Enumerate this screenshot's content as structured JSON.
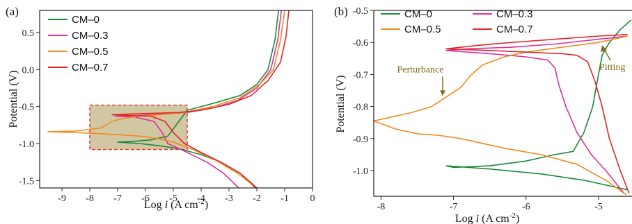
{
  "chart_data": [
    {
      "type": "line",
      "panel_label": "(a)",
      "xlabel": "Log i (A cm⁻²)",
      "ylabel": "Potential (V)",
      "xlim": [
        -9.8,
        0
      ],
      "ylim": [
        -1.6,
        0.8
      ],
      "xticks": [
        -9,
        -8,
        -7,
        -6,
        -5,
        -4,
        -3,
        -2,
        -1,
        0
      ],
      "yticks": [
        -1.5,
        -1.0,
        -0.5,
        0.0,
        0.5
      ],
      "ytick_labels": [
        "-1.5",
        "-1.0",
        "-0.5",
        "0.0",
        "0.5"
      ],
      "legend_position": "top-left",
      "highlight_box": {
        "x": [
          -8.0,
          -4.5
        ],
        "y": [
          -1.08,
          -0.48
        ]
      },
      "series": [
        {
          "name": "CM–0",
          "color": "#1a8a3a",
          "x": [
            -2.05,
            -2.6,
            -3.3,
            -4.0,
            -4.8,
            -5.5,
            -6.2,
            -7.0,
            -6.4,
            -5.8,
            -5.2,
            -4.8,
            -4.5,
            -3.5,
            -2.6,
            -2.0,
            -1.6,
            -1.35,
            -1.22
          ],
          "y": [
            -1.6,
            -1.4,
            -1.25,
            -1.15,
            -1.07,
            -1.03,
            -1.0,
            -0.98,
            -0.97,
            -0.95,
            -0.9,
            -0.7,
            -0.55,
            -0.45,
            -0.35,
            -0.2,
            0.0,
            0.4,
            0.8
          ]
        },
        {
          "name": "CM–0.3",
          "color": "#e0309a",
          "x": [
            -2.65,
            -3.2,
            -3.8,
            -4.5,
            -5.2,
            -5.4,
            -5.7,
            -6.4,
            -7.1,
            -6.2,
            -5.3,
            -4.5,
            -3.6,
            -2.7,
            -2.0,
            -1.5,
            -1.25,
            -1.12
          ],
          "y": [
            -1.6,
            -1.4,
            -1.25,
            -1.12,
            -1.0,
            -0.85,
            -0.7,
            -0.64,
            -0.63,
            -0.62,
            -0.6,
            -0.58,
            -0.52,
            -0.42,
            -0.25,
            0.0,
            0.4,
            0.8
          ]
        },
        {
          "name": "CM–0.5",
          "color": "#f28a1e",
          "x": [
            -2.0,
            -2.7,
            -3.5,
            -4.3,
            -5.0,
            -5.6,
            -6.2,
            -7.0,
            -8.0,
            -9.0,
            -9.5,
            -8.5,
            -7.6,
            -7.2,
            -6.8,
            -6.2,
            -5.5,
            -4.6,
            -3.6,
            -2.6,
            -1.9,
            -1.4,
            -1.15,
            -1.0
          ],
          "y": [
            -1.6,
            -1.4,
            -1.22,
            -1.08,
            -0.98,
            -0.93,
            -0.9,
            -0.88,
            -0.86,
            -0.845,
            -0.84,
            -0.83,
            -0.79,
            -0.7,
            -0.66,
            -0.63,
            -0.61,
            -0.58,
            -0.5,
            -0.38,
            -0.2,
            0.0,
            0.4,
            0.8
          ]
        },
        {
          "name": "CM–0.7",
          "color": "#e0262a",
          "x": [
            -2.0,
            -2.6,
            -3.3,
            -4.0,
            -4.6,
            -5.0,
            -5.3,
            -5.8,
            -6.5,
            -7.2,
            -6.5,
            -5.6,
            -4.8,
            -4.0,
            -3.0,
            -2.2,
            -1.6,
            -1.15,
            -0.95,
            -0.85
          ],
          "y": [
            -1.6,
            -1.4,
            -1.25,
            -1.12,
            -1.0,
            -0.85,
            -0.7,
            -0.63,
            -0.62,
            -0.61,
            -0.6,
            -0.59,
            -0.58,
            -0.55,
            -0.47,
            -0.35,
            -0.15,
            0.1,
            0.45,
            0.8
          ]
        }
      ]
    },
    {
      "type": "line",
      "panel_label": "(b)",
      "xlabel": "Log i (A cm⁻²)",
      "ylabel": "Potential (V)",
      "xlim": [
        -8.1,
        -4.5
      ],
      "ylim": [
        -1.08,
        -0.5
      ],
      "xticks": [
        -8,
        -7,
        -6,
        -5
      ],
      "yticks": [
        -1.0,
        -0.9,
        -0.8,
        -0.7,
        -0.6,
        -0.5
      ],
      "ytick_labels": [
        "-1.0",
        "-0.9",
        "-0.8",
        "-0.7",
        "-0.6",
        "-0.5"
      ],
      "legend_position": "top",
      "annotations": [
        {
          "text": "Perturbance",
          "x": -7.15,
          "y": -0.78,
          "color": "#8a6d1c"
        },
        {
          "text": "Pitting",
          "x": -4.97,
          "y": -0.6,
          "color": "#8a6d1c"
        }
      ],
      "series": [
        {
          "name": "CM–0",
          "color": "#1a8a3a",
          "x": [
            -4.6,
            -5.2,
            -5.8,
            -6.5,
            -7.1,
            -7.0,
            -6.5,
            -6.0,
            -5.6,
            -5.35,
            -5.2,
            -5.08,
            -5.0,
            -4.95,
            -4.85,
            -4.7,
            -4.55
          ],
          "y": [
            -1.06,
            -1.03,
            -1.01,
            -0.995,
            -0.985,
            -0.99,
            -0.985,
            -0.97,
            -0.95,
            -0.94,
            -0.88,
            -0.8,
            -0.7,
            -0.64,
            -0.6,
            -0.56,
            -0.53
          ]
        },
        {
          "name": "CM–0.3",
          "color": "#e0309a",
          "x": [
            -4.65,
            -4.9,
            -5.1,
            -5.3,
            -5.45,
            -5.55,
            -5.6,
            -5.7,
            -6.0,
            -6.5,
            -7.1,
            -6.8,
            -6.2,
            -5.6,
            -5.0,
            -4.6
          ],
          "y": [
            -1.07,
            -1.0,
            -0.95,
            -0.88,
            -0.8,
            -0.73,
            -0.68,
            -0.655,
            -0.645,
            -0.635,
            -0.625,
            -0.62,
            -0.615,
            -0.605,
            -0.59,
            -0.58
          ]
        },
        {
          "name": "CM–0.5",
          "color": "#f28a1e",
          "x": [
            -4.62,
            -4.9,
            -5.3,
            -5.8,
            -6.3,
            -6.9,
            -7.2,
            -7.5,
            -7.8,
            -8.1,
            -7.9,
            -7.6,
            -7.3,
            -7.1,
            -6.9,
            -6.75,
            -6.6,
            -6.3,
            -6.0,
            -5.5,
            -5.0,
            -4.6
          ],
          "y": [
            -1.075,
            -1.03,
            -0.98,
            -0.95,
            -0.93,
            -0.9,
            -0.89,
            -0.885,
            -0.87,
            -0.845,
            -0.835,
            -0.82,
            -0.8,
            -0.77,
            -0.74,
            -0.7,
            -0.67,
            -0.645,
            -0.63,
            -0.615,
            -0.6,
            -0.58
          ]
        },
        {
          "name": "CM–0.7",
          "color": "#e0262a",
          "x": [
            -4.58,
            -4.7,
            -4.85,
            -4.95,
            -5.05,
            -5.15,
            -5.3,
            -5.5,
            -6.0,
            -6.5,
            -7.1,
            -6.7,
            -6.2,
            -5.6,
            -5.0,
            -4.6
          ],
          "y": [
            -1.07,
            -1.0,
            -0.9,
            -0.8,
            -0.72,
            -0.66,
            -0.64,
            -0.635,
            -0.63,
            -0.625,
            -0.62,
            -0.61,
            -0.6,
            -0.59,
            -0.58,
            -0.575
          ]
        }
      ]
    }
  ]
}
